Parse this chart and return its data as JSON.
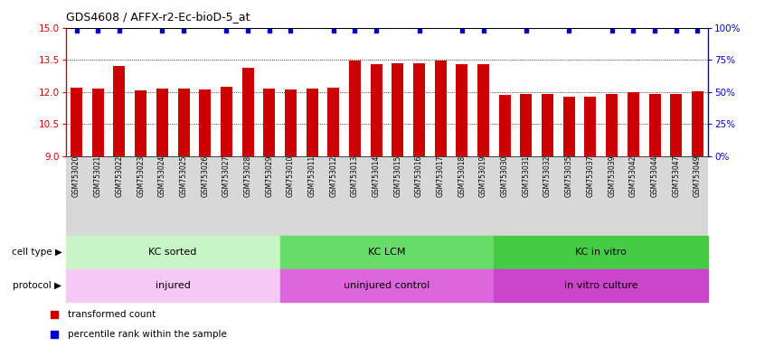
{
  "title": "GDS4608 / AFFX-r2-Ec-bioD-5_at",
  "samples": [
    "GSM753020",
    "GSM753021",
    "GSM753022",
    "GSM753023",
    "GSM753024",
    "GSM753025",
    "GSM753026",
    "GSM753027",
    "GSM753028",
    "GSM753029",
    "GSM753010",
    "GSM753011",
    "GSM753012",
    "GSM753013",
    "GSM753014",
    "GSM753015",
    "GSM753016",
    "GSM753017",
    "GSM753018",
    "GSM753019",
    "GSM753030",
    "GSM753031",
    "GSM753032",
    "GSM753035",
    "GSM753037",
    "GSM753039",
    "GSM753042",
    "GSM753044",
    "GSM753047",
    "GSM753049"
  ],
  "bar_values": [
    12.2,
    12.15,
    13.2,
    12.07,
    12.15,
    12.17,
    12.1,
    12.25,
    13.15,
    12.17,
    12.1,
    12.15,
    12.2,
    13.45,
    13.3,
    13.35,
    13.35,
    13.45,
    13.3,
    13.3,
    11.85,
    11.9,
    11.9,
    11.78,
    11.78,
    11.9,
    12.0,
    11.9,
    11.9,
    12.05
  ],
  "percentile_show": [
    true,
    true,
    true,
    false,
    true,
    true,
    false,
    true,
    true,
    true,
    true,
    false,
    true,
    true,
    true,
    false,
    true,
    false,
    true,
    true,
    false,
    true,
    false,
    true,
    false,
    true,
    true,
    true,
    true,
    true
  ],
  "bar_color": "#cc0000",
  "dot_color": "#0000cc",
  "ymin": 9,
  "ymax": 15,
  "yticks_left": [
    9,
    10.5,
    12,
    13.5,
    15
  ],
  "yticks_right": [
    0,
    25,
    50,
    75,
    100
  ],
  "dotted_lines": [
    10.5,
    12.0,
    13.5
  ],
  "cell_groups": [
    {
      "label": "KC sorted",
      "start": 0,
      "end": 9,
      "color": "#c8f5c8"
    },
    {
      "label": "KC LCM",
      "start": 10,
      "end": 19,
      "color": "#66dd66"
    },
    {
      "label": "KC in vitro",
      "start": 20,
      "end": 29,
      "color": "#44cc44"
    }
  ],
  "protocol_groups": [
    {
      "label": "injured",
      "start": 0,
      "end": 9,
      "color": "#f5c8f5"
    },
    {
      "label": "uninjured control",
      "start": 10,
      "end": 19,
      "color": "#dd66dd"
    },
    {
      "label": "in vitro culture",
      "start": 20,
      "end": 29,
      "color": "#cc44cc"
    }
  ],
  "cell_type_label": "cell type",
  "protocol_label": "protocol",
  "xtick_bg": "#d8d8d8",
  "legend": [
    {
      "label": "transformed count",
      "color": "#cc0000"
    },
    {
      "label": "percentile rank within the sample",
      "color": "#0000cc"
    }
  ]
}
